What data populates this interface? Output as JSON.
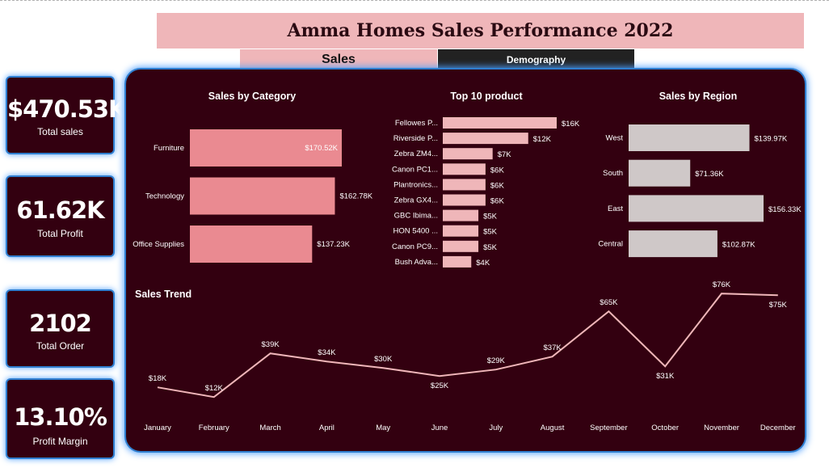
{
  "header": {
    "title": "Amma Homes Sales Performance 2022"
  },
  "tabs": [
    {
      "label": "Sales"
    },
    {
      "label": "Demography"
    }
  ],
  "kpis": [
    {
      "value": "$470.53K",
      "label": "Total sales"
    },
    {
      "value": "61.62K",
      "label": "Total Profit"
    },
    {
      "value": "2102",
      "label": "Total Order"
    },
    {
      "value": "13.10%",
      "label": "Profit Margin"
    }
  ],
  "colors": {
    "panel_bg": "#330010",
    "category_bar": "#ea8a91",
    "product_bar": "#efb6b9",
    "region_bar": "#cfc8c8",
    "trend_line": "#efb6b9",
    "glow": "#4fa0ff"
  },
  "chart_data": [
    {
      "type": "bar",
      "orientation": "horizontal",
      "title": "Sales by Category",
      "categories": [
        "Furniture",
        "Technology",
        "Office Supplies"
      ],
      "values": [
        170.52,
        162.78,
        137.23
      ],
      "value_labels": [
        "$170.52K",
        "$162.78K",
        "$137.23K"
      ],
      "unit": "K"
    },
    {
      "type": "bar",
      "orientation": "horizontal",
      "title": "Top 10 product",
      "categories": [
        "Fellowes P...",
        "Riverside P...",
        "Zebra ZM4...",
        "Canon PC1...",
        "Plantronics...",
        "Zebra GX4...",
        "GBC Ibima...",
        "HON 5400 ...",
        "Canon PC9...",
        "Bush Adva..."
      ],
      "values": [
        16,
        12,
        7,
        6,
        6,
        6,
        5,
        5,
        5,
        4
      ],
      "value_labels": [
        "$16K",
        "$12K",
        "$7K",
        "$6K",
        "$6K",
        "$6K",
        "$5K",
        "$5K",
        "$5K",
        "$4K"
      ],
      "unit": "K"
    },
    {
      "type": "bar",
      "orientation": "horizontal",
      "title": "Sales by Region",
      "categories": [
        "West",
        "South",
        "East",
        "Central"
      ],
      "values": [
        139.97,
        71.36,
        156.33,
        102.87
      ],
      "value_labels": [
        "$139.97K",
        "$71.36K",
        "$156.33K",
        "$102.87K"
      ],
      "unit": "K"
    },
    {
      "type": "line",
      "title": "Sales Trend",
      "categories": [
        "January",
        "February",
        "March",
        "April",
        "May",
        "June",
        "July",
        "August",
        "September",
        "October",
        "November",
        "December"
      ],
      "values": [
        18,
        12,
        39,
        34,
        30,
        25,
        29,
        37,
        65,
        31,
        76,
        75
      ],
      "value_labels": [
        "$18K",
        "$12K",
        "$39K",
        "$34K",
        "$30K",
        "$25K",
        "$29K",
        "$37K",
        "$65K",
        "$31K",
        "$76K",
        "$75K"
      ],
      "label_position": [
        "above",
        "above",
        "above",
        "above",
        "above",
        "below",
        "above",
        "above",
        "above",
        "below",
        "above",
        "below"
      ],
      "unit": "K"
    }
  ]
}
